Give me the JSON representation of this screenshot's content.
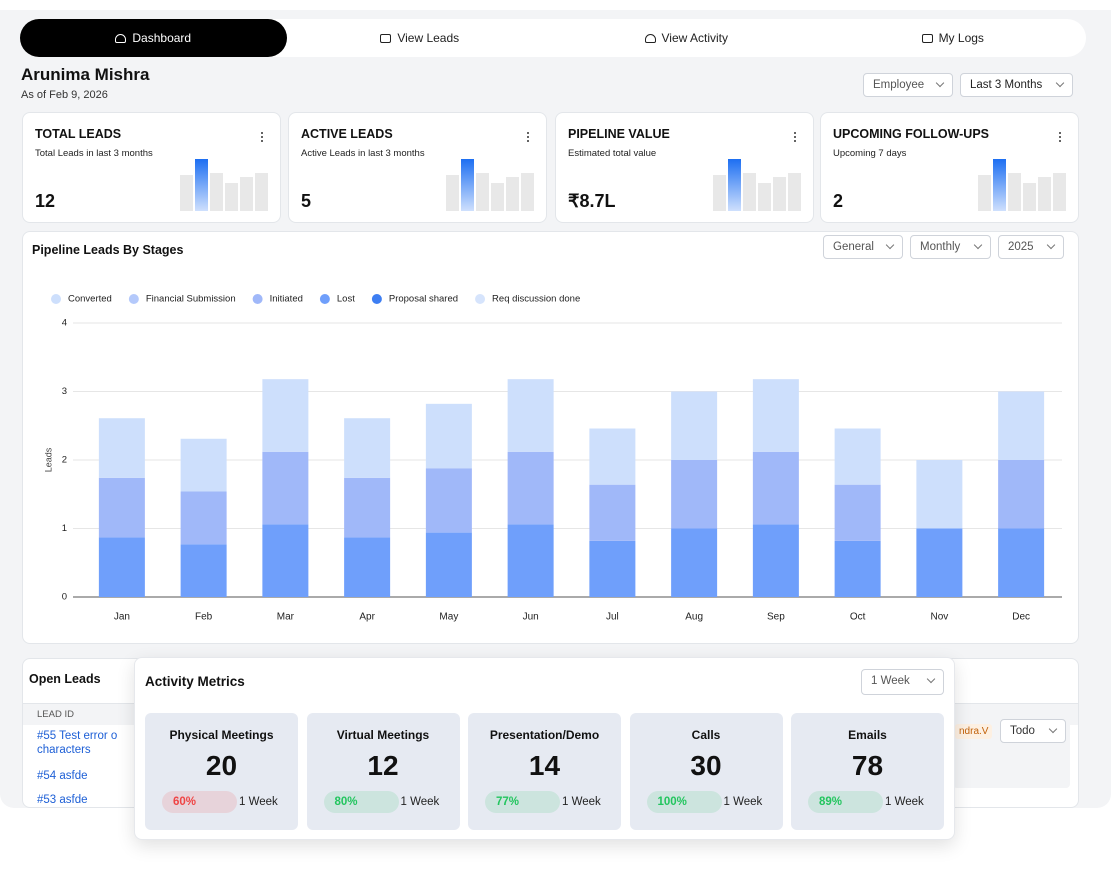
{
  "nav": {
    "tabs": [
      "Dashboard",
      "View Leads",
      "View Activity",
      "My Logs"
    ]
  },
  "header": {
    "name": "Arunima Mishra",
    "date": "As of Feb 9, 2026",
    "filters": [
      "Employee",
      "Last 3 Months"
    ]
  },
  "cards": [
    {
      "title": "TOTAL LEADS",
      "subtitle": "Total Leads in last 3 months",
      "value": "12"
    },
    {
      "title": "ACTIVE LEADS",
      "subtitle": "Active Leads in last 3 months",
      "value": "5"
    },
    {
      "title": "PIPELINE VALUE",
      "subtitle": "Estimated total value",
      "value": "₹8.7L"
    },
    {
      "title": "UPCOMING FOLLOW-UPS",
      "subtitle": "Upcoming 7 days",
      "value": "2"
    }
  ],
  "chart_data": {
    "type": "bar",
    "stacked": true,
    "title": "Pipeline Leads By Stages",
    "filters": [
      "General",
      "Monthly",
      "2025"
    ],
    "ylabel": "Leads",
    "categories": [
      "Jan",
      "Feb",
      "Mar",
      "Apr",
      "May",
      "Jun",
      "Jul",
      "Aug",
      "Sep",
      "Oct",
      "Nov",
      "Dec"
    ],
    "series": [
      {
        "name": "Converted",
        "color": "#cddffc",
        "values": [
          0.87,
          0.77,
          1.06,
          0.87,
          0.94,
          1.06,
          0.82,
          1,
          1.06,
          0.82,
          1,
          1
        ]
      },
      {
        "name": "Financial Submission",
        "color": "#b4c9fb",
        "values": [
          0,
          0,
          0,
          0,
          0,
          0,
          0,
          0,
          0,
          0,
          0,
          0
        ]
      },
      {
        "name": "Initiated",
        "color": "#a0b8f9",
        "values": [
          0.87,
          0.77,
          1.06,
          0.87,
          0.94,
          1.06,
          0.82,
          1,
          1.06,
          0.82,
          0,
          1
        ]
      },
      {
        "name": "Lost",
        "color": "#6f9ffb",
        "values": [
          0.87,
          0.77,
          1.06,
          0.87,
          0.94,
          1.06,
          0.82,
          1,
          1.06,
          0.82,
          1,
          1
        ]
      },
      {
        "name": "Proposal shared",
        "color": "#3d7ef2",
        "values": [
          0,
          0,
          0,
          0,
          0,
          0,
          0,
          0,
          0,
          0,
          0,
          0
        ]
      },
      {
        "name": "Req discussion done",
        "color": "#d6e4fc",
        "values": [
          0,
          0,
          0,
          0,
          0,
          0,
          0,
          0,
          0,
          0,
          0,
          0
        ]
      }
    ],
    "ylim": [
      0,
      4
    ],
    "yticks": [
      0,
      1,
      2,
      3,
      4
    ],
    "grid": true,
    "legend": "top-left"
  },
  "open_leads": {
    "title": "Open Leads",
    "columns": [
      "LEAD ID"
    ],
    "rows": [
      "#55 Test error o characters",
      "#54 asfde",
      "#53 asfde"
    ],
    "owner": "ndra.V",
    "status": "Todo"
  },
  "activity": {
    "title": "Activity Metrics",
    "period": "1 Week",
    "metrics": [
      {
        "label": "Physical Meetings",
        "value": "20",
        "change": "60%",
        "period": "1 Week",
        "color": "#ef4444"
      },
      {
        "label": "Virtual Meetings",
        "value": "12",
        "change": "80%",
        "period": "1 Week",
        "color": "#22c55e"
      },
      {
        "label": "Presentation/Demo",
        "value": "14",
        "change": "77%",
        "period": "1 Week",
        "color": "#22c55e"
      },
      {
        "label": "Calls",
        "value": "30",
        "change": "100%",
        "period": "1 Week",
        "color": "#22c55e"
      },
      {
        "label": "Emails",
        "value": "78",
        "change": "89%",
        "period": "1 Week",
        "color": "#22c55e"
      }
    ]
  }
}
